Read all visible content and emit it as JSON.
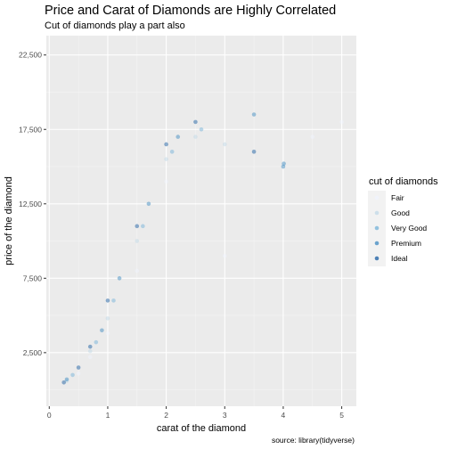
{
  "chart_data": {
    "type": "scatter",
    "title": "Price and Carat of Diamonds are Highly Correlated",
    "subtitle": "Cut of diamonds play a part also",
    "xlabel": "carat of the diamond",
    "ylabel": "price of the diamond",
    "caption": "source: library(tidyverse)",
    "xlim": [
      -0.05,
      5.25
    ],
    "ylim": [
      -1100,
      23800
    ],
    "x_ticks": [
      0,
      1,
      2,
      3,
      4,
      5
    ],
    "x_tick_labels": [
      "0",
      "1",
      "2",
      "3",
      "4",
      "5"
    ],
    "y_ticks": [
      2500,
      7500,
      12500,
      17500,
      22500
    ],
    "y_tick_labels": [
      "2,500",
      "7,500",
      "12,500",
      "17,500",
      "22,500"
    ],
    "grid": true,
    "legend": {
      "title": "cut of diamonds",
      "placement": "right",
      "entries": [
        "Fair",
        "Good",
        "Very Good",
        "Premium",
        "Ideal"
      ]
    },
    "series": [
      {
        "name": "Fair",
        "color": "#eff3ff",
        "points": [
          [
            0.5,
            1100
          ],
          [
            0.7,
            2200
          ],
          [
            1.0,
            3800
          ],
          [
            1.5,
            8000
          ],
          [
            2.0,
            14000
          ],
          [
            3.0,
            9000
          ],
          [
            4.5,
            17000
          ],
          [
            5.0,
            18000
          ]
        ]
      },
      {
        "name": "Good",
        "color": "#bdd7e7",
        "points": [
          [
            0.3,
            600
          ],
          [
            0.7,
            2600
          ],
          [
            1.0,
            4800
          ],
          [
            1.5,
            10000
          ],
          [
            2.0,
            15500
          ],
          [
            2.5,
            17000
          ],
          [
            3.0,
            16500
          ]
        ]
      },
      {
        "name": "Very Good",
        "color": "#6baed6",
        "points": [
          [
            0.4,
            1000
          ],
          [
            0.8,
            3200
          ],
          [
            1.1,
            6000
          ],
          [
            1.6,
            11000
          ],
          [
            2.1,
            16000
          ],
          [
            2.6,
            17500
          ]
        ]
      },
      {
        "name": "Premium",
        "color": "#3182bd",
        "points": [
          [
            0.3,
            700
          ],
          [
            0.9,
            4000
          ],
          [
            1.2,
            7500
          ],
          [
            1.7,
            12500
          ],
          [
            2.2,
            17000
          ],
          [
            3.5,
            18500
          ],
          [
            4.0,
            15000
          ],
          [
            4.01,
            15200
          ]
        ]
      },
      {
        "name": "Ideal",
        "color": "#08519c",
        "points": [
          [
            0.25,
            500
          ],
          [
            0.5,
            1500
          ],
          [
            0.7,
            2900
          ],
          [
            1.0,
            6000
          ],
          [
            1.5,
            11000
          ],
          [
            2.0,
            16500
          ],
          [
            2.5,
            18000
          ],
          [
            3.5,
            16000
          ]
        ]
      }
    ]
  }
}
